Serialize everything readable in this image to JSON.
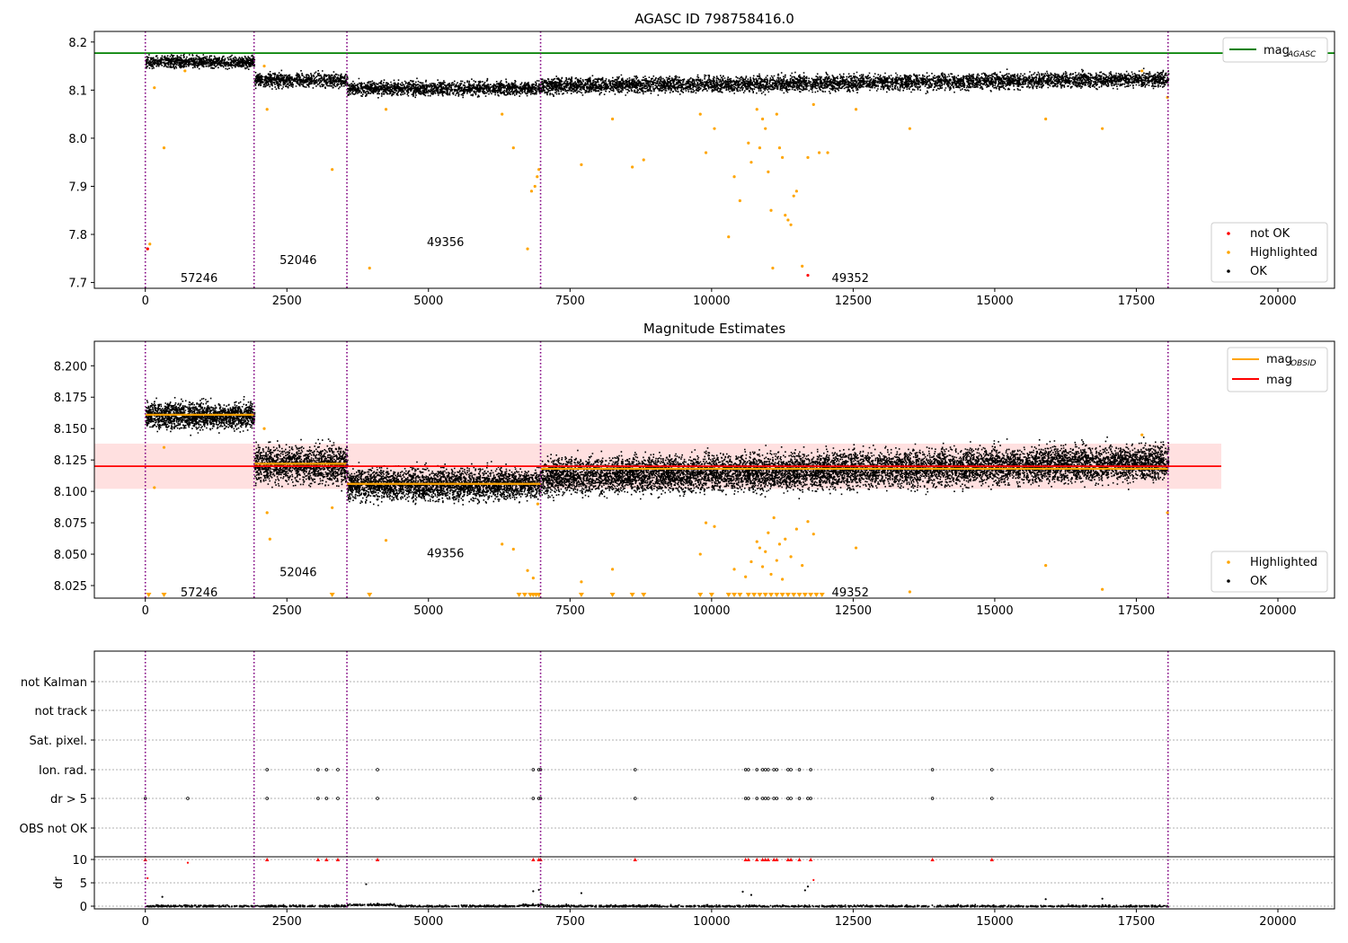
{
  "chart_data": [
    {
      "type": "scatter",
      "title": "AGASC ID 798758416.0",
      "xlim": [
        -900,
        21000
      ],
      "ylim": [
        7.688,
        8.222
      ],
      "xticks": [
        0,
        2500,
        5000,
        7500,
        10000,
        12500,
        15000,
        17500,
        20000
      ],
      "xtick_labels": [
        "0",
        "2500",
        "5000",
        "7500",
        "10000",
        "12500",
        "15000",
        "17500",
        "20000"
      ],
      "yticks": [
        7.7,
        7.8,
        7.9,
        8.0,
        8.1,
        8.2
      ],
      "ytick_labels": [
        "7.7",
        "7.8",
        "7.9",
        "8.0",
        "8.1",
        "8.2"
      ],
      "grid": false,
      "vlines": [
        0,
        1920,
        3560,
        6980,
        18060
      ],
      "hline": {
        "name": "mag_AGASC",
        "legend_label": "mag",
        "legend_sub": "AGASC",
        "y": 8.177,
        "color": "#008000"
      },
      "obsid_labels": [
        {
          "text": "57246",
          "x": 950,
          "y": 7.71
        },
        {
          "text": "52046",
          "x": 2700,
          "y": 7.748
        },
        {
          "text": "49356",
          "x": 5300,
          "y": 7.785
        },
        {
          "text": "49352",
          "x": 12450,
          "y": 7.71
        }
      ],
      "segments": [
        {
          "x0": 0,
          "x1": 1920,
          "mean": 8.16,
          "spread": 0.006
        },
        {
          "x0": 1920,
          "x1": 3560,
          "mean": 8.122,
          "spread": 0.007
        },
        {
          "x0": 3560,
          "x1": 6980,
          "mean": 8.105,
          "spread": 0.007
        },
        {
          "x0": 6980,
          "x1": 18060,
          "mean_start": 8.11,
          "mean_end": 8.124,
          "spread": 0.008
        }
      ],
      "highlighted_points": [
        [
          40,
          7.77
        ],
        [
          80,
          7.78
        ],
        [
          160,
          8.105
        ],
        [
          330,
          7.98
        ],
        [
          700,
          8.14
        ],
        [
          2150,
          8.06
        ],
        [
          2100,
          8.15
        ],
        [
          3300,
          7.935
        ],
        [
          3960,
          7.73
        ],
        [
          4250,
          8.06
        ],
        [
          6300,
          8.05
        ],
        [
          6500,
          7.98
        ],
        [
          6750,
          7.77
        ],
        [
          6820,
          7.89
        ],
        [
          6880,
          7.9
        ],
        [
          6920,
          7.92
        ],
        [
          6950,
          7.935
        ],
        [
          7700,
          7.945
        ],
        [
          8250,
          8.04
        ],
        [
          8600,
          7.94
        ],
        [
          8800,
          7.955
        ],
        [
          9800,
          8.05
        ],
        [
          9900,
          7.97
        ],
        [
          10050,
          8.02
        ],
        [
          10300,
          7.795
        ],
        [
          10400,
          7.92
        ],
        [
          10500,
          7.87
        ],
        [
          10650,
          7.99
        ],
        [
          10700,
          7.95
        ],
        [
          10800,
          8.06
        ],
        [
          10850,
          7.98
        ],
        [
          10900,
          8.04
        ],
        [
          10950,
          8.02
        ],
        [
          11000,
          7.93
        ],
        [
          11050,
          7.85
        ],
        [
          11080,
          7.73
        ],
        [
          11150,
          8.05
        ],
        [
          11200,
          7.98
        ],
        [
          11250,
          7.96
        ],
        [
          11300,
          7.84
        ],
        [
          11350,
          7.83
        ],
        [
          11400,
          7.82
        ],
        [
          11450,
          7.88
        ],
        [
          11500,
          7.89
        ],
        [
          11600,
          7.734
        ],
        [
          11700,
          7.96
        ],
        [
          11800,
          8.07
        ],
        [
          11900,
          7.97
        ],
        [
          12050,
          7.97
        ],
        [
          12550,
          8.06
        ],
        [
          13500,
          8.02
        ],
        [
          15900,
          8.04
        ],
        [
          16900,
          8.02
        ],
        [
          17600,
          8.14
        ],
        [
          18050,
          8.085
        ]
      ],
      "not_ok_points": [
        [
          40,
          7.77
        ],
        [
          11700,
          7.715
        ]
      ],
      "legend": {
        "placement": "lower-right",
        "entries": [
          "not OK",
          "Highlighted",
          "OK"
        ],
        "colors": [
          "#ff0000",
          "#ffa500",
          "#000000"
        ]
      }
    },
    {
      "type": "scatter",
      "title": "Magnitude Estimates",
      "xlim": [
        -900,
        21000
      ],
      "ylim": [
        8.015,
        8.2195
      ],
      "xticks": [
        0,
        2500,
        5000,
        7500,
        10000,
        12500,
        15000,
        17500,
        20000
      ],
      "xtick_labels": [
        "0",
        "2500",
        "5000",
        "7500",
        "10000",
        "12500",
        "15000",
        "17500",
        "20000"
      ],
      "yticks": [
        8.025,
        8.05,
        8.075,
        8.1,
        8.125,
        8.15,
        8.175,
        8.2
      ],
      "ytick_labels": [
        "8.025",
        "8.050",
        "8.075",
        "8.100",
        "8.125",
        "8.150",
        "8.175",
        "8.200"
      ],
      "grid": false,
      "vlines": [
        0,
        1920,
        3560,
        6980,
        18060
      ],
      "mag": {
        "y": 8.12,
        "band": [
          8.102,
          8.138
        ],
        "x0": -900,
        "x1": 19000,
        "color": "#ff0000"
      },
      "mag_obsid": [
        {
          "x0": 0,
          "x1": 1920,
          "y": 8.161
        },
        {
          "x0": 1920,
          "x1": 3560,
          "y": 8.122
        },
        {
          "x0": 3560,
          "x1": 6980,
          "y": 8.106
        },
        {
          "x0": 6980,
          "x1": 18060,
          "y": 8.118
        }
      ],
      "obsid_labels": [
        {
          "text": "57246",
          "x": 950,
          "y": 8.02
        },
        {
          "text": "52046",
          "x": 2700,
          "y": 8.036
        },
        {
          "text": "49356",
          "x": 5300,
          "y": 8.051
        },
        {
          "text": "49352",
          "x": 12450,
          "y": 8.02
        }
      ],
      "highlighted_points": [
        [
          160,
          8.103
        ],
        [
          330,
          8.135
        ],
        [
          2150,
          8.083
        ],
        [
          2200,
          8.062
        ],
        [
          2100,
          8.15
        ],
        [
          3300,
          8.087
        ],
        [
          4250,
          8.061
        ],
        [
          6300,
          8.058
        ],
        [
          6500,
          8.054
        ],
        [
          6750,
          8.037
        ],
        [
          6850,
          8.031
        ],
        [
          6930,
          8.09
        ],
        [
          7700,
          8.028
        ],
        [
          8250,
          8.038
        ],
        [
          9800,
          8.05
        ],
        [
          9900,
          8.075
        ],
        [
          10050,
          8.072
        ],
        [
          10400,
          8.038
        ],
        [
          10600,
          8.032
        ],
        [
          10700,
          8.044
        ],
        [
          10800,
          8.06
        ],
        [
          10850,
          8.055
        ],
        [
          10900,
          8.04
        ],
        [
          10950,
          8.052
        ],
        [
          11000,
          8.067
        ],
        [
          11050,
          8.034
        ],
        [
          11100,
          8.079
        ],
        [
          11150,
          8.045
        ],
        [
          11200,
          8.058
        ],
        [
          11250,
          8.03
        ],
        [
          11300,
          8.062
        ],
        [
          11400,
          8.048
        ],
        [
          11500,
          8.07
        ],
        [
          11600,
          8.041
        ],
        [
          11700,
          8.076
        ],
        [
          11800,
          8.066
        ],
        [
          12550,
          8.055
        ],
        [
          13500,
          8.02
        ],
        [
          15900,
          8.041
        ],
        [
          16900,
          8.022
        ],
        [
          17600,
          8.145
        ],
        [
          18050,
          8.083
        ]
      ],
      "offscale_x": [
        60,
        330,
        3300,
        3960,
        6600,
        6700,
        6800,
        6850,
        6900,
        6950,
        7700,
        8250,
        8600,
        8800,
        9800,
        10000,
        10300,
        10400,
        10500,
        10650,
        10750,
        10850,
        10950,
        11050,
        11150,
        11250,
        11350,
        11450,
        11550,
        11650,
        11750,
        11850,
        11950
      ],
      "legend_top": {
        "placement": "upper-right",
        "entries": [
          {
            "label": "mag",
            "sub": "OBSID",
            "color": "#ffa500"
          },
          {
            "label": "mag",
            "sub": "",
            "color": "#ff0000"
          }
        ]
      },
      "legend_bottom": {
        "placement": "lower-right",
        "entries": [
          "Highlighted",
          "OK"
        ],
        "colors": [
          "#ffa500",
          "#000000"
        ]
      }
    },
    {
      "type": "scatter",
      "title": "",
      "xlim": [
        -900,
        21000
      ],
      "categories": [
        "not Kalman",
        "not track",
        "Sat. pixel.",
        "Ion. rad.",
        "dr > 5",
        "OBS not OK"
      ],
      "vlines": [
        0,
        1920,
        3560,
        6980,
        18060
      ],
      "flags": {
        "Ion. rad.": [
          2150,
          3050,
          3200,
          3400,
          4100,
          6850,
          6950,
          6980,
          8650,
          10600,
          10650,
          10800,
          10900,
          10950,
          11000,
          11100,
          11150,
          11350,
          11400,
          11550,
          11750,
          13900,
          14950
        ],
        "dr > 5": [
          0,
          750,
          2150,
          3050,
          3200,
          3400,
          4100,
          6850,
          6950,
          6980,
          8650,
          10600,
          10650,
          10800,
          10900,
          10950,
          11000,
          11100,
          11150,
          11350,
          11400,
          11550,
          11700,
          11750,
          13900,
          14950
        ]
      }
    },
    {
      "type": "scatter",
      "title": "",
      "ylabel": "dr",
      "xlim": [
        -900,
        21000
      ],
      "ylim": [
        -0.5,
        10.5
      ],
      "yticks": [
        0,
        5,
        10
      ],
      "ytick_labels": [
        "0",
        "5",
        "10"
      ],
      "xticks": [
        0,
        2500,
        5000,
        7500,
        10000,
        12500,
        15000,
        17500,
        20000
      ],
      "xtick_labels": [
        "0",
        "2500",
        "5000",
        "7500",
        "10000",
        "12500",
        "15000",
        "17500",
        "20000"
      ],
      "vlines": [
        0,
        1920,
        3560,
        6980,
        18060
      ],
      "clipped_at_10": [
        0,
        2150,
        3050,
        3200,
        3400,
        4100,
        6850,
        6950,
        6980,
        8650,
        10600,
        10650,
        10800,
        10900,
        10950,
        11000,
        11100,
        11150,
        11350,
        11400,
        11550,
        11750,
        13900,
        14950
      ],
      "outliers": [
        [
          40,
          6.0
        ],
        [
          750,
          9.3
        ],
        [
          300,
          2.0
        ],
        [
          3900,
          4.7
        ],
        [
          6850,
          3.2
        ],
        [
          6950,
          3.5
        ],
        [
          7700,
          2.8
        ],
        [
          10550,
          3.1
        ],
        [
          10700,
          2.4
        ],
        [
          11650,
          3.4
        ],
        [
          11800,
          5.6
        ],
        [
          11700,
          4.2
        ],
        [
          15900,
          1.5
        ],
        [
          16900,
          1.6
        ]
      ]
    }
  ]
}
